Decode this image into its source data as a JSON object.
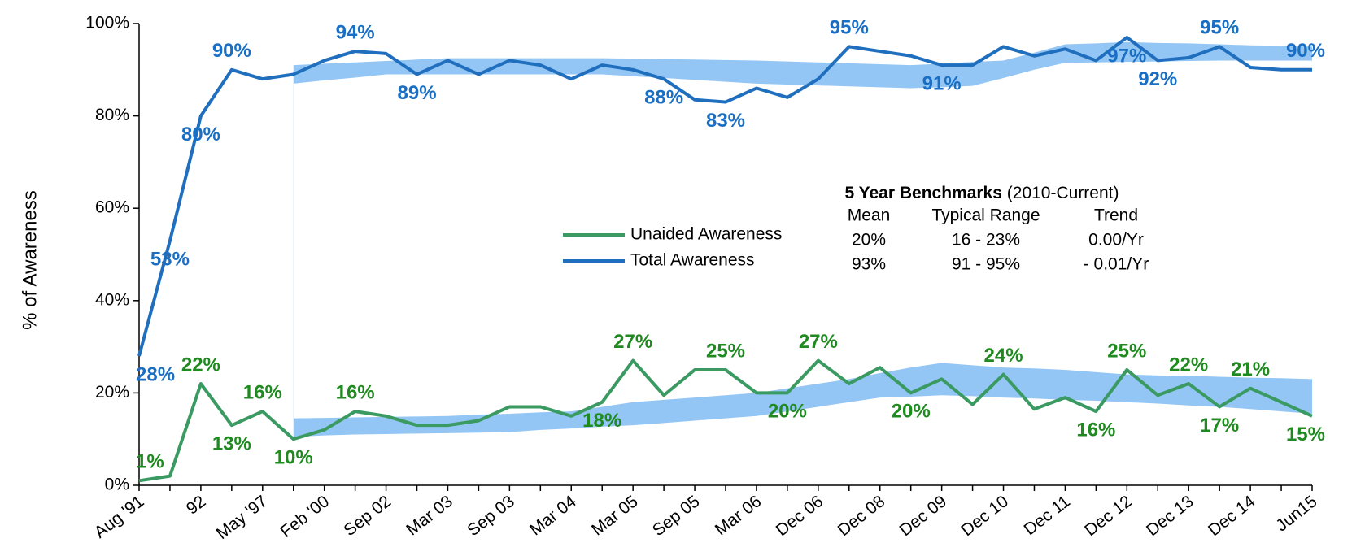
{
  "chart_data": {
    "type": "line",
    "y_label": "% of Awareness",
    "categories": [
      "Aug '91",
      null,
      "92",
      null,
      "May '97",
      null,
      "Feb '00",
      null,
      "Sep 02",
      null,
      "Mar 03",
      null,
      "Sep 03",
      null,
      "Mar 04",
      null,
      "Mar 05",
      null,
      "Sep 05",
      null,
      "Mar 06",
      null,
      "Dec 06",
      null,
      "Dec 08",
      null,
      "Dec 09",
      null,
      "Dec 10",
      null,
      "Dec 11",
      null,
      "Dec 12",
      null,
      "Dec 13",
      null,
      "Dec 14",
      null,
      "Jun15"
    ],
    "ylim": [
      0,
      100
    ],
    "yticks": [
      {
        "value": 0,
        "label": "0%"
      },
      {
        "value": 20,
        "label": "20%"
      },
      {
        "value": 40,
        "label": "40%"
      },
      {
        "value": 60,
        "label": "60%"
      },
      {
        "value": 80,
        "label": "80%"
      },
      {
        "value": 100,
        "label": "100%"
      }
    ],
    "series": [
      {
        "name": "Unaided Awareness",
        "color": "#3a9a62",
        "label_color": "#1f8a1f",
        "values": [
          1,
          2,
          22,
          13,
          16,
          10,
          12,
          16,
          15,
          13,
          13,
          14,
          17,
          17,
          15,
          18,
          27,
          19.5,
          25,
          25,
          20,
          20,
          27,
          22,
          25.5,
          20,
          23,
          17.5,
          24,
          16.5,
          19,
          16,
          25,
          19.5,
          22,
          17,
          21,
          18,
          15
        ],
        "value_labels": [
          "1%",
          null,
          "22%",
          "13%",
          "16%",
          "10%",
          null,
          "16%",
          null,
          null,
          null,
          null,
          null,
          null,
          null,
          "18%",
          "27%",
          null,
          null,
          "25%",
          null,
          "20%",
          "27%",
          null,
          null,
          "20%",
          null,
          null,
          "24%",
          null,
          null,
          "16%",
          "25%",
          null,
          "22%",
          "17%",
          "21%",
          null,
          "15%"
        ],
        "band_lower": [
          null,
          null,
          null,
          null,
          null,
          10.5,
          10.8,
          11,
          11.1,
          11.2,
          11.3,
          11.4,
          11.5,
          12,
          12.3,
          12.7,
          13,
          13.5,
          14,
          14.5,
          15,
          16,
          17,
          18,
          19,
          19.2,
          19.5,
          19.3,
          19,
          18.8,
          18.5,
          18.3,
          18,
          17.7,
          17.3,
          17,
          16.5,
          16,
          15.5
        ],
        "band_upper": [
          null,
          null,
          null,
          null,
          null,
          14.5,
          14.6,
          14.7,
          14.8,
          14.9,
          15,
          15.3,
          15.5,
          15.8,
          16,
          17,
          18,
          18.5,
          19,
          19.5,
          20,
          21,
          22,
          23,
          24.3,
          25.5,
          26.5,
          26,
          25.5,
          25.3,
          25,
          24.5,
          24,
          23.8,
          23.7,
          23.5,
          23.3,
          23.2,
          23
        ]
      },
      {
        "name": "Total Awareness",
        "color": "#1f6fbe",
        "label_color": "#1a6fc4",
        "values": [
          28,
          53,
          80,
          90,
          88,
          89,
          92,
          94,
          93.5,
          89,
          92,
          89,
          92,
          91,
          88,
          91,
          90,
          88,
          83.5,
          83,
          86,
          84,
          88,
          95,
          94,
          93,
          91,
          91,
          95,
          93,
          94.5,
          92,
          97,
          92,
          92.6,
          95,
          90.5,
          90,
          90
        ],
        "value_labels": [
          "28%",
          "53%",
          "80%",
          "90%",
          null,
          null,
          null,
          "94%",
          null,
          "89%",
          null,
          null,
          null,
          null,
          null,
          null,
          null,
          "88%",
          null,
          "83%",
          null,
          null,
          null,
          "95%",
          null,
          null,
          "91%",
          null,
          null,
          null,
          null,
          null,
          "97%",
          "92%",
          null,
          "95%",
          null,
          null,
          "90%"
        ],
        "band_lower": [
          null,
          null,
          null,
          null,
          null,
          87,
          87.7,
          88.3,
          89,
          89,
          89,
          89,
          89,
          89,
          89,
          89,
          88.6,
          88.2,
          87.8,
          87.4,
          87,
          86.8,
          86.6,
          86.4,
          86.2,
          86,
          86.2,
          86.5,
          88.2,
          90,
          91.5,
          91.6,
          91.7,
          91.8,
          91.9,
          92,
          92,
          92,
          92
        ],
        "band_upper": [
          null,
          null,
          null,
          null,
          null,
          91,
          91.3,
          91.6,
          91.9,
          92.2,
          92.5,
          92.5,
          92.5,
          92.5,
          92.5,
          92.5,
          92.4,
          92.3,
          92.2,
          92.1,
          92,
          91.8,
          91.6,
          91.4,
          91.2,
          91,
          91.3,
          91.7,
          92,
          93.7,
          95.5,
          95.7,
          96,
          95.8,
          95.7,
          95.5,
          95.3,
          95.2,
          95
        ]
      }
    ],
    "band_color": "#93c6f4",
    "benchmarks": {
      "title": "5 Year Benchmarks",
      "subtitle": "(2010-Current)",
      "headers": [
        "Mean",
        "Typical Range",
        "Trend"
      ],
      "rows": [
        [
          "20%",
          "16 - 23%",
          "0.00/Yr"
        ],
        [
          "93%",
          "91 - 95%",
          "- 0.01/Yr"
        ]
      ]
    }
  }
}
